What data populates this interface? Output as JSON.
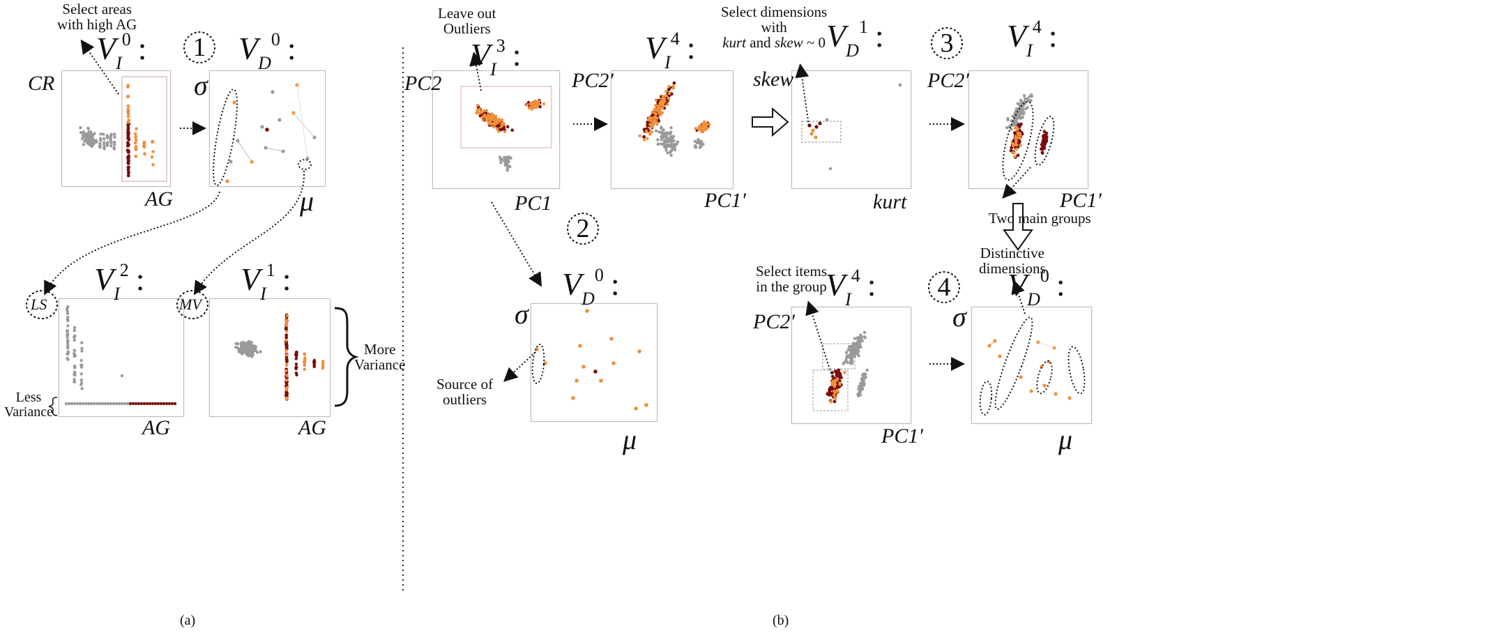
{
  "figure": {
    "caption_a": "(a)",
    "caption_b": "(b)"
  },
  "steps": [
    "1",
    "2",
    "3",
    "4"
  ],
  "annotations": {
    "select_high_ag": "Select areas\nwith high AG",
    "leave_out_outliers": "Leave out\nOutliers",
    "select_dims_prefix": "Select dimensions\nwith",
    "select_dims_kurt": "kurt",
    "select_dims_and": " and ",
    "select_dims_skew": "skew",
    "select_dims_suffix": " ~ 0",
    "two_main_groups": "Two main groups",
    "select_items_group": "Select items\nin the group",
    "distinctive_dimensions": "Distinctive\ndimensions",
    "source_of_outliers": "Source of\noutliers",
    "less_variance": "Less\nVariance",
    "more_variance": "More\nVariance",
    "ls_label": "LS",
    "mv_label": "MV"
  },
  "panels": {
    "vi0": {
      "var": "V",
      "sub": "I",
      "sup": "0",
      "ylabel": "CR",
      "xlabel": "AG"
    },
    "vd0_a": {
      "var": "V",
      "sub": "D",
      "sup": "0",
      "ylabel": "σ",
      "xlabel": "μ"
    },
    "vi2": {
      "var": "V",
      "sub": "I",
      "sup": "2",
      "ylabel": "",
      "xlabel": "AG"
    },
    "vi1": {
      "var": "V",
      "sub": "I",
      "sup": "1",
      "ylabel": "",
      "xlabel": "AG"
    },
    "vi3": {
      "var": "V",
      "sub": "I",
      "sup": "3",
      "ylabel": "PC2",
      "xlabel": "PC1"
    },
    "vi4_top": {
      "var": "V",
      "sub": "I",
      "sup": "4",
      "ylabel": "PC2′",
      "xlabel": "PC1′"
    },
    "vd1": {
      "var": "V",
      "sub": "D",
      "sup": "1",
      "ylabel": "skew",
      "xlabel": "kurt"
    },
    "vi4_right": {
      "var": "V",
      "sub": "I",
      "sup": "4",
      "ylabel": "PC2′",
      "xlabel": "PC1′"
    },
    "vd0_b": {
      "var": "V",
      "sub": "D",
      "sup": "0",
      "ylabel": "σ",
      "xlabel": "μ"
    },
    "vi4_bottom": {
      "var": "V",
      "sub": "I",
      "sup": "4",
      "ylabel": "PC2′",
      "xlabel": "PC1′"
    },
    "vd0_c": {
      "var": "V",
      "sub": "D",
      "sup": "0",
      "ylabel": "σ",
      "xlabel": "μ"
    }
  },
  "colors": {
    "gray_point": "#9a9a9a",
    "dark_red": "#7a0c0c",
    "orange": "#f0903a",
    "panel_border": "#bdbdbd"
  }
}
